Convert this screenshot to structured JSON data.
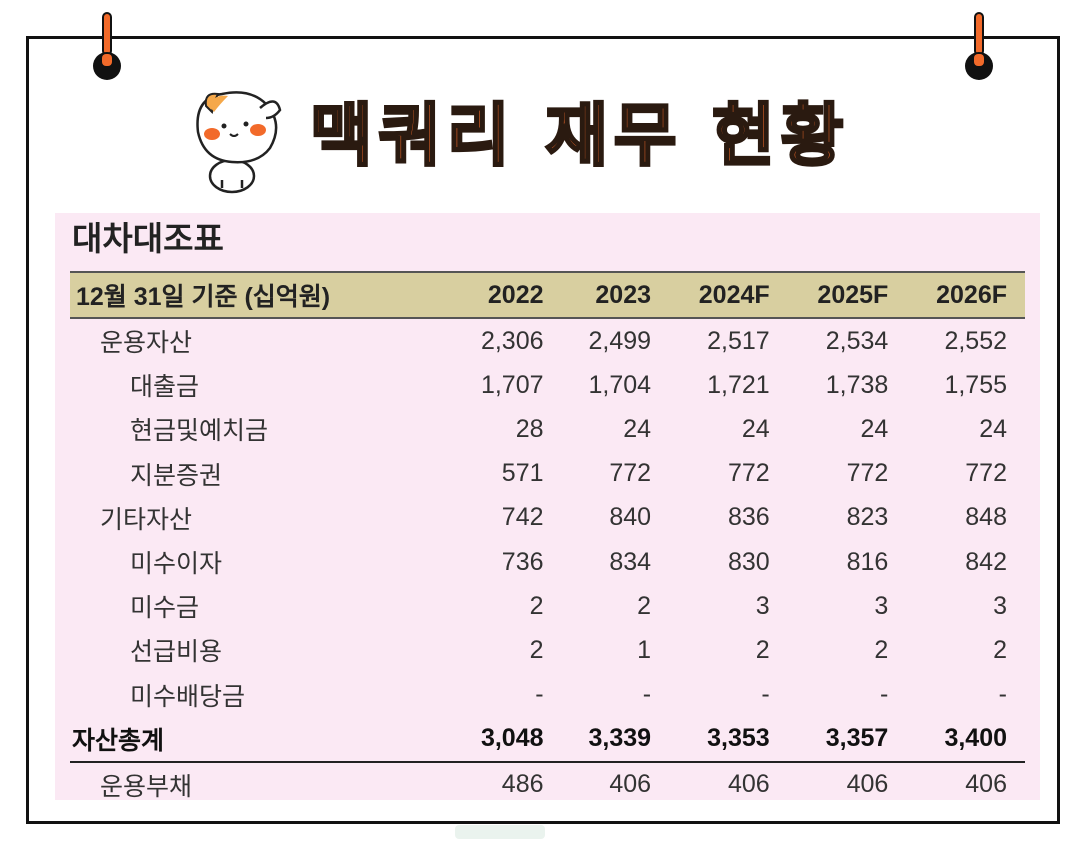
{
  "header": {
    "title": "맥쿼리 재무 현황"
  },
  "sheet": {
    "title": "대차대조표",
    "columns": [
      "12월 31일 기준 (십억원)",
      "2022",
      "2023",
      "2024F",
      "2025F",
      "2026F"
    ],
    "rows": [
      {
        "label": "운용자산",
        "level": 1,
        "values": [
          "2,306",
          "2,499",
          "2,517",
          "2,534",
          "2,552"
        ]
      },
      {
        "label": "대출금",
        "level": 2,
        "values": [
          "1,707",
          "1,704",
          "1,721",
          "1,738",
          "1,755"
        ]
      },
      {
        "label": "현금및예치금",
        "level": 2,
        "values": [
          "28",
          "24",
          "24",
          "24",
          "24"
        ]
      },
      {
        "label": "지분증권",
        "level": 2,
        "values": [
          "571",
          "772",
          "772",
          "772",
          "772"
        ]
      },
      {
        "label": "기타자산",
        "level": 1,
        "values": [
          "742",
          "840",
          "836",
          "823",
          "848"
        ]
      },
      {
        "label": "미수이자",
        "level": 2,
        "values": [
          "736",
          "834",
          "830",
          "816",
          "842"
        ]
      },
      {
        "label": "미수금",
        "level": 2,
        "values": [
          "2",
          "2",
          "3",
          "3",
          "3"
        ]
      },
      {
        "label": "선급비용",
        "level": 2,
        "values": [
          "2",
          "1",
          "2",
          "2",
          "2"
        ]
      },
      {
        "label": "미수배당금",
        "level": 2,
        "values": [
          "-",
          "-",
          "-",
          "-",
          "-"
        ]
      },
      {
        "label": "자산총계",
        "level": 0,
        "total": true,
        "values": [
          "3,048",
          "3,339",
          "3,353",
          "3,357",
          "3,400"
        ]
      },
      {
        "label": "운용부채",
        "level": 1,
        "values": [
          "486",
          "406",
          "406",
          "406",
          "406"
        ]
      }
    ]
  },
  "icons": {
    "pin_left": "pin-icon",
    "pin_right": "pin-icon",
    "mascot": "cat-mascot-icon"
  },
  "colors": {
    "accent": "#f26a2a",
    "sheet_bg": "#fbe9f4",
    "header_band": "#d8cfa0"
  }
}
